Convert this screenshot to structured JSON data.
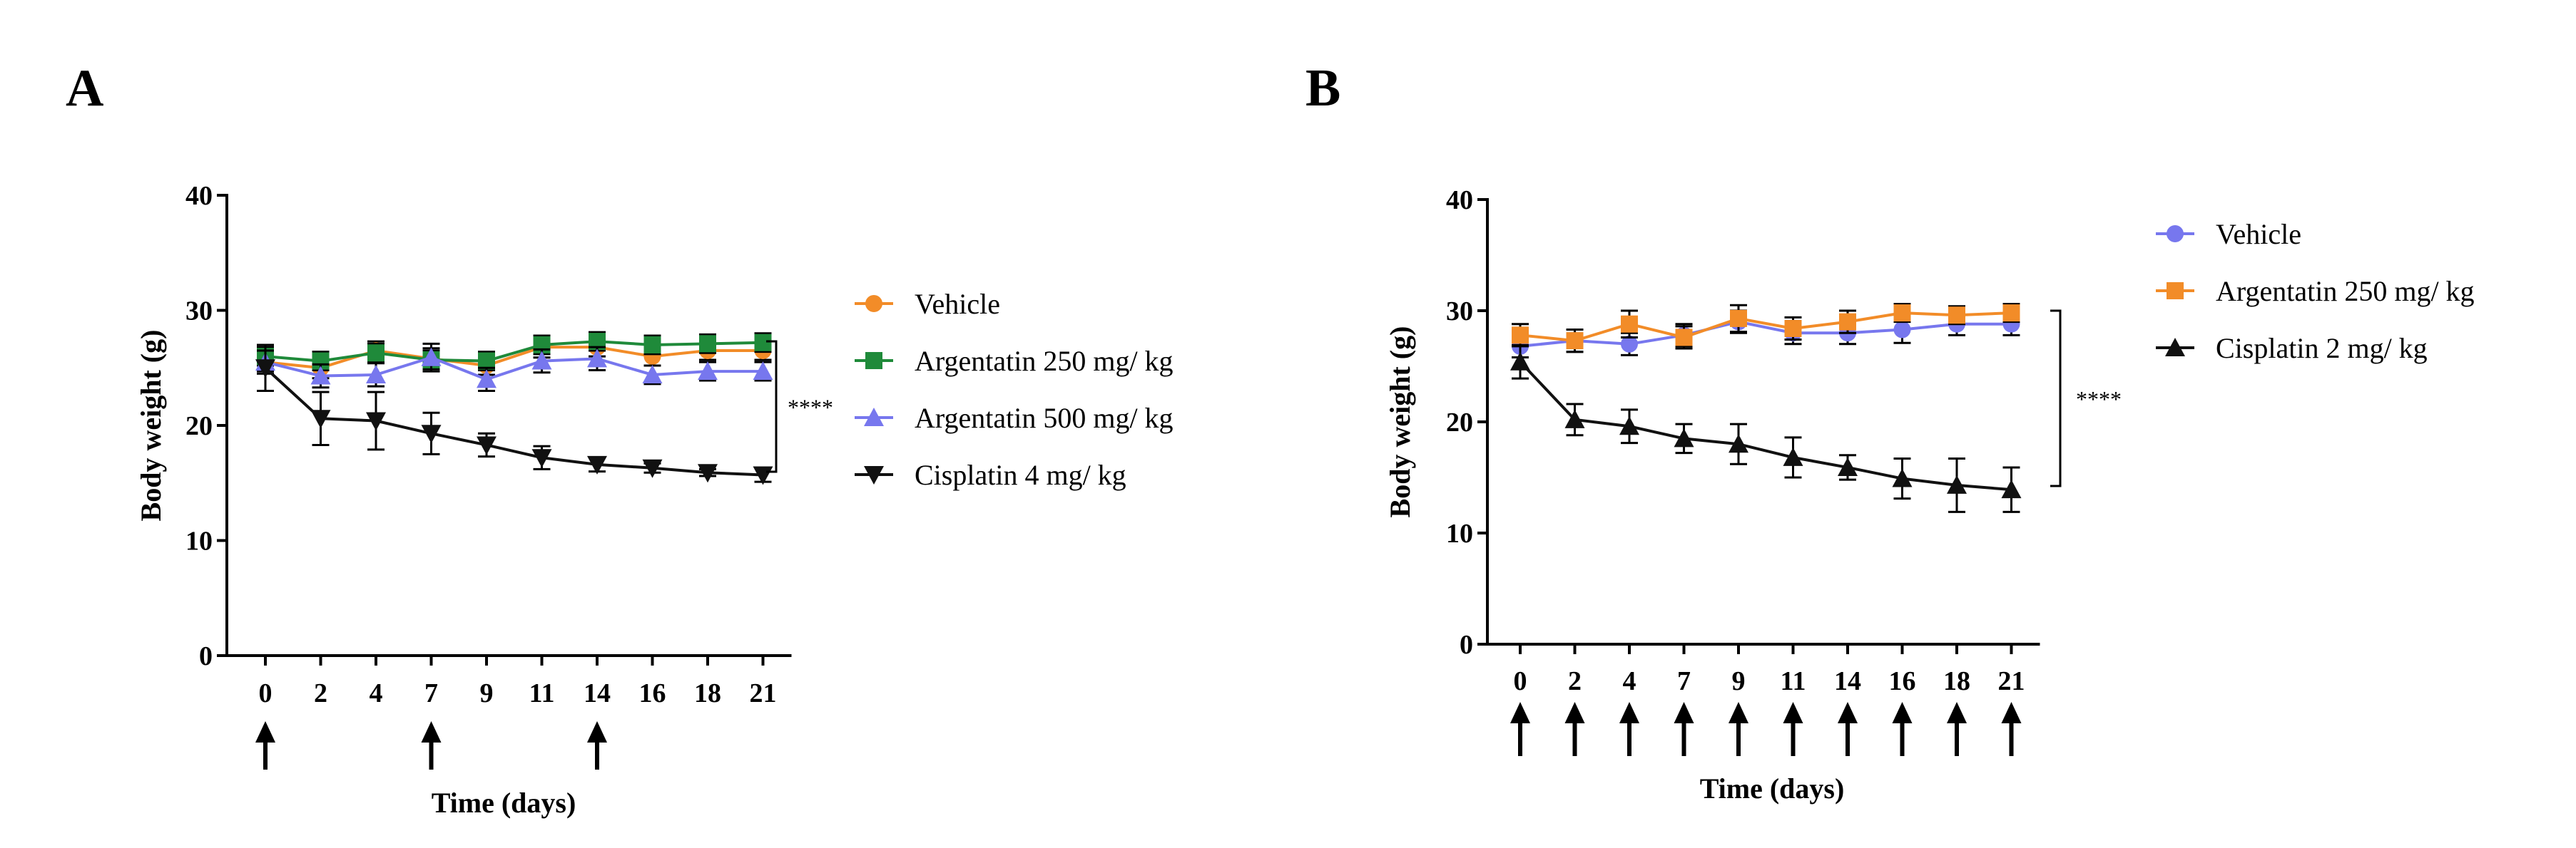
{
  "panels": [
    {
      "letter": "A",
      "chart_data": {
        "type": "line",
        "title": "",
        "xlabel": "Time (days)",
        "ylabel": "Body weight (g)",
        "categories": [
          "0",
          "2",
          "4",
          "7",
          "9",
          "11",
          "14",
          "16",
          "18",
          "21"
        ],
        "ylim": [
          0,
          40
        ],
        "yticks": [
          "0",
          "10",
          "20",
          "30",
          "40"
        ],
        "grid": false,
        "legend_position": "right",
        "dosing_days": [
          "0",
          "7",
          "14"
        ],
        "significance": "****",
        "series": [
          {
            "name": "Vehicle",
            "color": "#f28c28",
            "marker": "circle",
            "values": [
              25.5,
              25.0,
              26.5,
              25.8,
              25.2,
              26.8,
              26.8,
              26.0,
              26.5,
              26.5
            ],
            "errors": [
              0.8,
              0.9,
              0.8,
              0.9,
              0.8,
              0.9,
              0.8,
              0.8,
              0.8,
              0.8
            ]
          },
          {
            "name": "Argentatin 250 mg/ kg",
            "color": "#1f8a3a",
            "marker": "square",
            "values": [
              26.0,
              25.6,
              26.3,
              25.7,
              25.6,
              27.0,
              27.3,
              27.0,
              27.1,
              27.2
            ],
            "errors": [
              0.8,
              0.8,
              0.8,
              0.8,
              0.8,
              0.8,
              0.8,
              0.8,
              0.8,
              0.8
            ]
          },
          {
            "name": "Argentatin 500 mg/ kg",
            "color": "#7777ee",
            "marker": "triangle-up",
            "values": [
              25.5,
              24.3,
              24.4,
              25.9,
              24.0,
              25.6,
              25.8,
              24.4,
              24.7,
              24.7
            ],
            "errors": [
              1.0,
              1.0,
              1.0,
              1.2,
              1.0,
              1.0,
              1.0,
              0.8,
              0.8,
              0.8
            ]
          },
          {
            "name": "Cisplatin 4 mg/ kg",
            "color": "#111111",
            "marker": "triangle-down",
            "values": [
              25.0,
              20.6,
              20.4,
              19.3,
              18.3,
              17.2,
              16.6,
              16.3,
              15.9,
              15.7
            ],
            "errors": [
              2.0,
              2.3,
              2.5,
              1.8,
              1.0,
              1.0,
              0.6,
              0.4,
              0.3,
              0.6
            ]
          }
        ]
      }
    },
    {
      "letter": "B",
      "chart_data": {
        "type": "line",
        "title": "",
        "xlabel": "Time (days)",
        "ylabel": "Body weight (g)",
        "categories": [
          "0",
          "2",
          "4",
          "7",
          "9",
          "11",
          "14",
          "16",
          "18",
          "21"
        ],
        "ylim": [
          0,
          40
        ],
        "yticks": [
          "0",
          "10",
          "20",
          "30",
          "40"
        ],
        "grid": false,
        "legend_position": "right",
        "dosing_days": [
          "0",
          "2",
          "4",
          "7",
          "9",
          "11",
          "14",
          "16",
          "18",
          "21"
        ],
        "significance": "****",
        "series": [
          {
            "name": "Vehicle",
            "color": "#7777ee",
            "marker": "circle",
            "values": [
              26.8,
              27.3,
              27.0,
              27.8,
              29.0,
              28.0,
              28.0,
              28.3,
              28.8,
              28.8
            ],
            "errors": [
              1.0,
              1.0,
              1.0,
              1.0,
              1.0,
              1.0,
              1.0,
              1.2,
              1.0,
              1.0
            ]
          },
          {
            "name": "Argentatin 250 mg/ kg",
            "color": "#f28c28",
            "marker": "square",
            "values": [
              27.8,
              27.3,
              28.8,
              27.6,
              29.3,
              28.4,
              29.0,
              29.8,
              29.6,
              29.8
            ],
            "errors": [
              1.0,
              1.0,
              1.2,
              1.0,
              1.2,
              1.0,
              1.0,
              0.8,
              0.8,
              0.8
            ]
          },
          {
            "name": "Cisplatin 2 mg/ kg",
            "color": "#111111",
            "marker": "triangle-up",
            "values": [
              25.4,
              20.2,
              19.6,
              18.5,
              18.0,
              16.8,
              15.9,
              14.9,
              14.3,
              13.9
            ],
            "errors": [
              1.5,
              1.4,
              1.5,
              1.3,
              1.8,
              1.8,
              1.1,
              1.8,
              2.4,
              2.0
            ]
          }
        ]
      }
    }
  ]
}
